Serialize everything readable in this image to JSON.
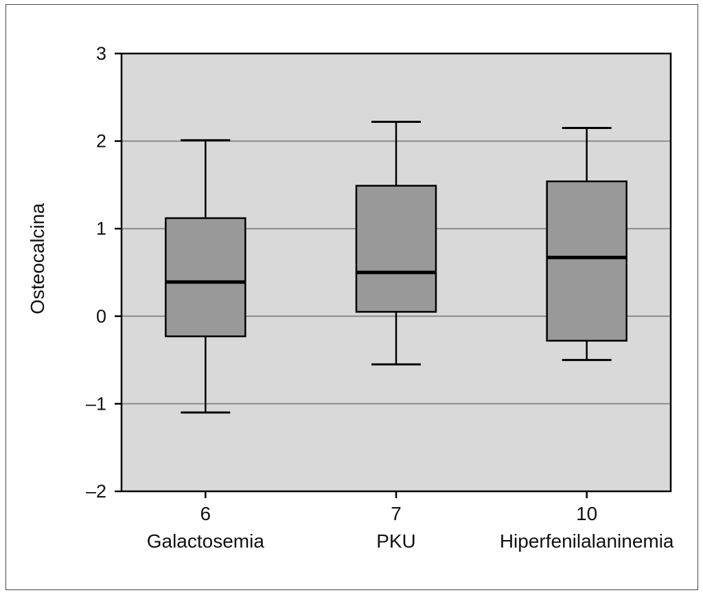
{
  "chart_data": {
    "type": "boxplot",
    "title": "",
    "xlabel": "",
    "ylabel": "Osteocalcina",
    "ylim": [
      -2,
      3
    ],
    "yticks": [
      "–2",
      "–1",
      "0",
      "1",
      "2",
      "3"
    ],
    "grid": "horizontal",
    "colors": {
      "plot_background": "#d9d9d9",
      "box_fill": "#999999",
      "gridline": "#8a8a8a",
      "stroke": "#000000"
    },
    "categories": [
      {
        "n": "6",
        "label": "Galactosemia",
        "whisker_low": -1.1,
        "q1": -0.23,
        "median": 0.39,
        "q3": 1.12,
        "whisker_high": 2.01
      },
      {
        "n": "7",
        "label": "PKU",
        "whisker_low": -0.55,
        "q1": 0.05,
        "median": 0.5,
        "q3": 1.49,
        "whisker_high": 2.22
      },
      {
        "n": "10",
        "label": "Hiperfenilalaninemia",
        "whisker_low": -0.5,
        "q1": -0.28,
        "median": 0.67,
        "q3": 1.54,
        "whisker_high": 2.15
      }
    ]
  }
}
